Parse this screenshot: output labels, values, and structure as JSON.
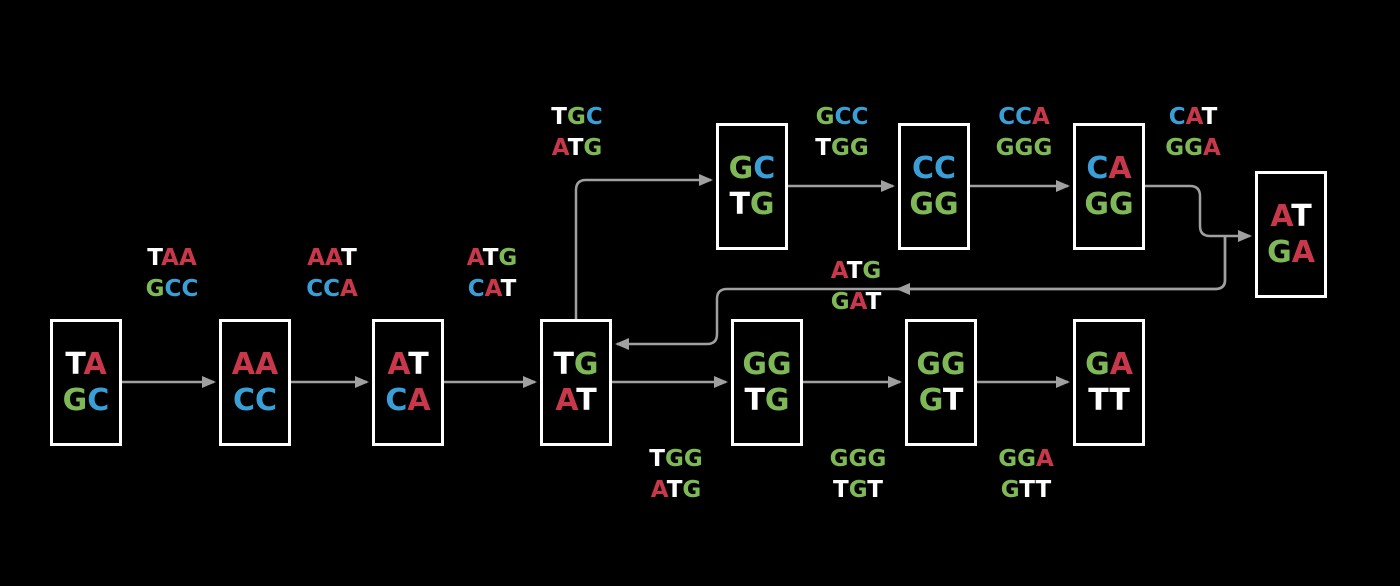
{
  "colors": {
    "A": "#c8384a",
    "C": "#3a9fd6",
    "G": "#7fb957",
    "T": "#ffffff",
    "background": "#000000",
    "node_border": "#ffffff",
    "edge": "#a0a0a0"
  },
  "nodes": [
    {
      "id": "n1",
      "top": "TA",
      "bottom": "GC"
    },
    {
      "id": "n2",
      "top": "AA",
      "bottom": "CC"
    },
    {
      "id": "n3",
      "top": "AT",
      "bottom": "CA"
    },
    {
      "id": "n4",
      "top": "TG",
      "bottom": "AT"
    },
    {
      "id": "n5",
      "top": "GC",
      "bottom": "TG"
    },
    {
      "id": "n6",
      "top": "CC",
      "bottom": "GG"
    },
    {
      "id": "n7",
      "top": "CA",
      "bottom": "GG"
    },
    {
      "id": "n8",
      "top": "AT",
      "bottom": "GA"
    },
    {
      "id": "n9",
      "top": "GG",
      "bottom": "TG"
    },
    {
      "id": "n10",
      "top": "GG",
      "bottom": "GT"
    },
    {
      "id": "n11",
      "top": "GA",
      "bottom": "TT"
    }
  ],
  "edges": [
    {
      "id": "e1",
      "from": "n1",
      "to": "n2",
      "top": "TAA",
      "bottom": "GCC"
    },
    {
      "id": "e2",
      "from": "n2",
      "to": "n3",
      "top": "AAT",
      "bottom": "CCA"
    },
    {
      "id": "e3",
      "from": "n3",
      "to": "n4",
      "top": "ATG",
      "bottom": "CAT"
    },
    {
      "id": "e4",
      "from": "n4",
      "to": "n5",
      "top": "TGC",
      "bottom": "ATG"
    },
    {
      "id": "e5",
      "from": "n5",
      "to": "n6",
      "top": "GCC",
      "bottom": "TGG"
    },
    {
      "id": "e6",
      "from": "n6",
      "to": "n7",
      "top": "CCA",
      "bottom": "GGG"
    },
    {
      "id": "e7",
      "from": "n7",
      "to": "n8",
      "top": "CAT",
      "bottom": "GGA"
    },
    {
      "id": "e8",
      "from": "n8",
      "to": "n4",
      "top": "ATG",
      "bottom": "GAT"
    },
    {
      "id": "e9",
      "from": "n4",
      "to": "n9",
      "top": "TGG",
      "bottom": "ATG"
    },
    {
      "id": "e10",
      "from": "n9",
      "to": "n10",
      "top": "GGG",
      "bottom": "TGT"
    },
    {
      "id": "e11",
      "from": "n10",
      "to": "n11",
      "top": "GGA",
      "bottom": "GTT"
    }
  ]
}
